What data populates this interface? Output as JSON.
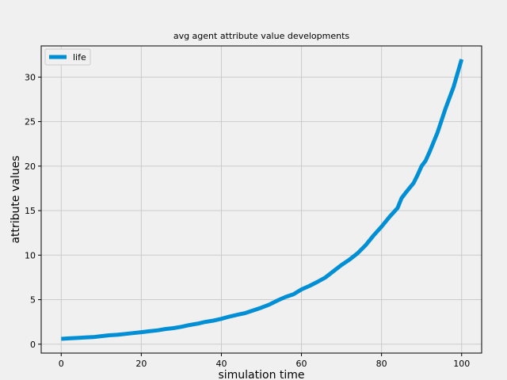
{
  "chart_data": {
    "type": "line",
    "title": "avg agent attribute value developments",
    "xlabel": "simulation time",
    "ylabel": "attribute values",
    "xlim": [
      -5,
      105
    ],
    "ylim": [
      -1,
      33.5
    ],
    "xticks": [
      0,
      20,
      40,
      60,
      80,
      100
    ],
    "yticks": [
      0,
      5,
      10,
      15,
      20,
      25,
      30
    ],
    "grid": true,
    "legend_position": "top-left",
    "series": [
      {
        "name": "life",
        "color": "#008fd5",
        "x": [
          0,
          2,
          4,
          6,
          8,
          10,
          12,
          14,
          16,
          18,
          20,
          22,
          24,
          26,
          28,
          30,
          32,
          34,
          36,
          38,
          40,
          42,
          44,
          46,
          48,
          50,
          52,
          54,
          56,
          58,
          60,
          62,
          64,
          66,
          68,
          70,
          72,
          74,
          76,
          78,
          80,
          82,
          84,
          85,
          86,
          88,
          89,
          90,
          91,
          92,
          94,
          96,
          98,
          100
        ],
        "y": [
          0.6,
          0.65,
          0.7,
          0.75,
          0.8,
          0.9,
          1.0,
          1.05,
          1.15,
          1.25,
          1.35,
          1.45,
          1.55,
          1.7,
          1.8,
          1.95,
          2.15,
          2.3,
          2.5,
          2.65,
          2.85,
          3.1,
          3.3,
          3.5,
          3.8,
          4.1,
          4.45,
          4.9,
          5.3,
          5.6,
          6.15,
          6.55,
          7.0,
          7.5,
          8.2,
          8.9,
          9.5,
          10.2,
          11.1,
          12.2,
          13.2,
          14.3,
          15.3,
          16.4,
          17.0,
          18.1,
          19.0,
          20.0,
          20.6,
          21.6,
          23.8,
          26.5,
          28.9,
          32.0
        ]
      }
    ]
  }
}
